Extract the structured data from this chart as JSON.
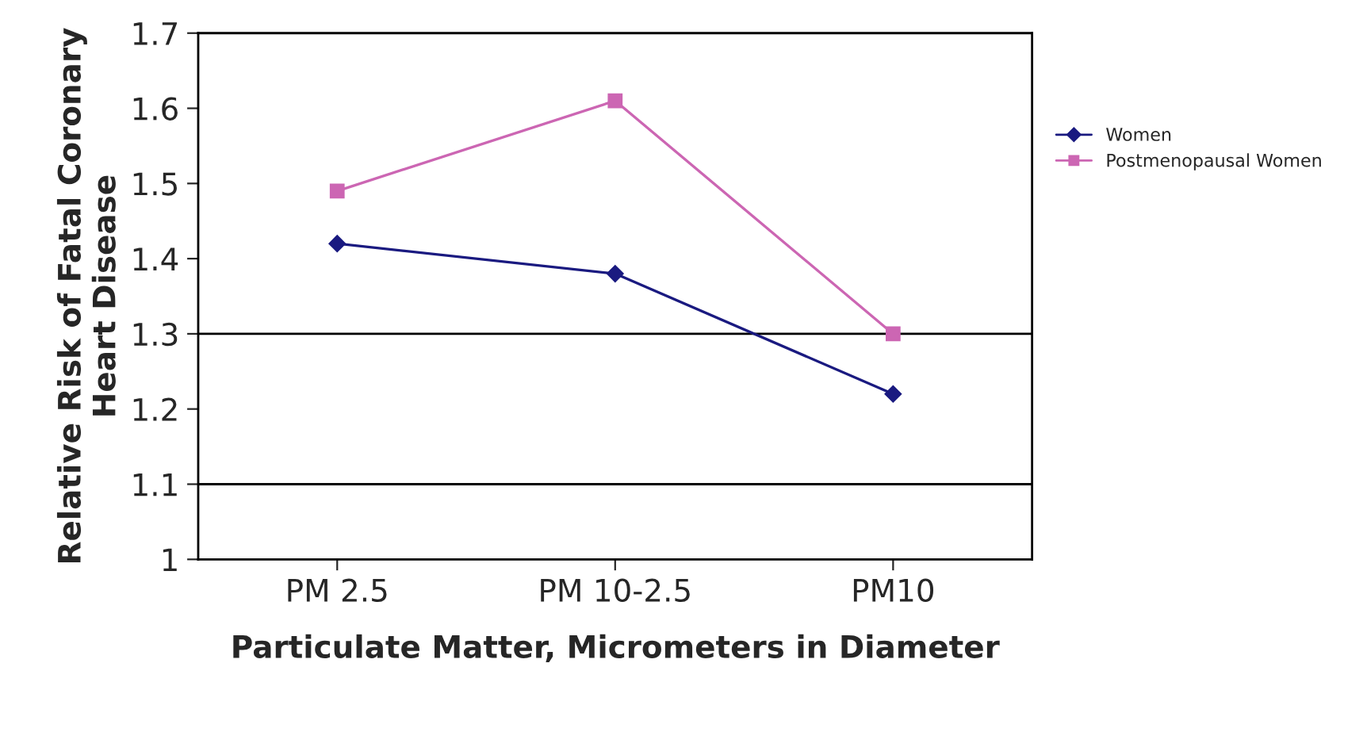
{
  "chart_data": {
    "type": "line",
    "xlabel": "Particulate Matter, Micrometers in Diameter",
    "ylabel": "Relative Risk of Fatal Coronary Heart Disease",
    "categories": [
      "PM 2.5",
      "PM 10-2.5",
      "PM10"
    ],
    "series": [
      {
        "name": "Women",
        "color": "#1a1a80",
        "values": [
          1.42,
          1.38,
          1.22
        ],
        "marker": "diamond"
      },
      {
        "name": "Postmenopausal Women",
        "color": "#cc66b3",
        "values": [
          1.49,
          1.61,
          1.3
        ],
        "marker": "square"
      }
    ],
    "ylim": [
      1,
      1.7
    ],
    "yticks": [
      1,
      1.1,
      1.2,
      1.3,
      1.4,
      1.5,
      1.6,
      1.7
    ],
    "ref_lines": [
      {
        "axis": "y",
        "value": 1.3,
        "color": "#000000"
      },
      {
        "axis": "y",
        "value": 1.1,
        "color": "#000000"
      }
    ],
    "grid": false,
    "legend": "right",
    "line_style": "solid"
  }
}
